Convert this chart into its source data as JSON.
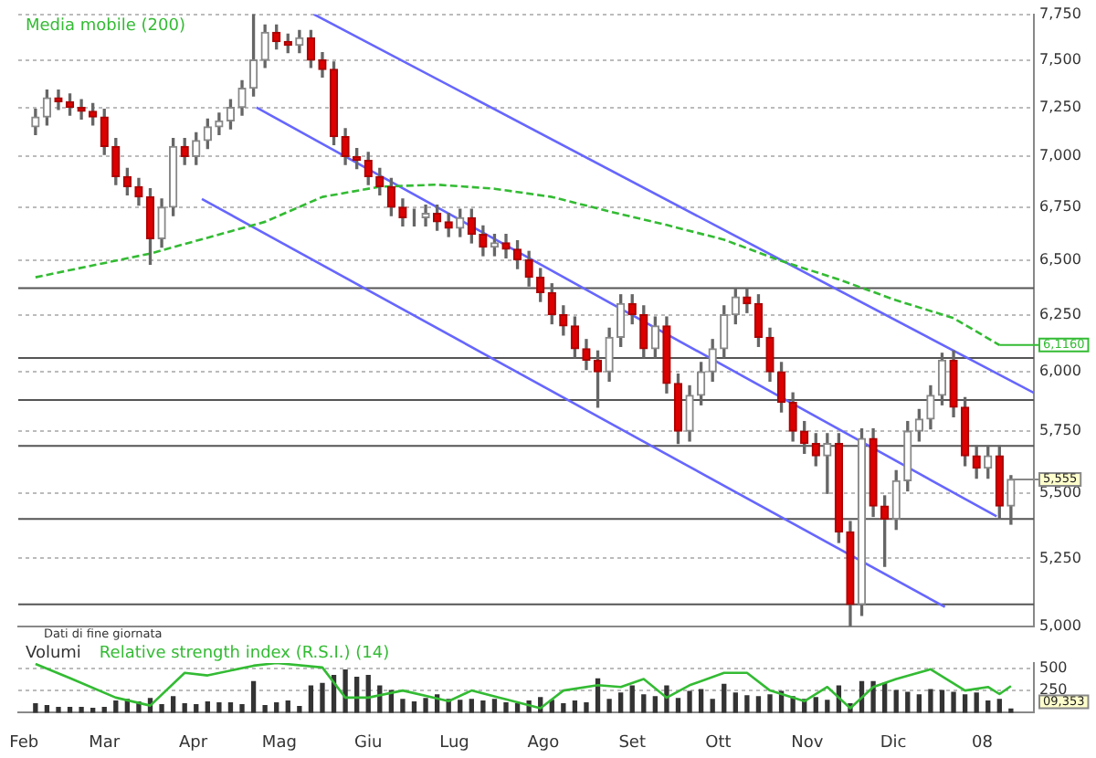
{
  "chart_data": [
    {
      "type": "candlestick",
      "x": [
        "2007-02-05",
        "2007-02-09",
        "2007-02-13",
        "2007-02-17",
        "2007-02-21",
        "2007-02-25",
        "2007-03-01",
        "2007-03-05",
        "2007-03-09",
        "2007-03-13",
        "2007-03-17",
        "2007-03-21",
        "2007-03-25",
        "2007-03-29",
        "2007-04-02",
        "2007-04-06",
        "2007-04-10",
        "2007-04-14",
        "2007-04-18",
        "2007-04-22",
        "2007-04-26",
        "2007-04-30",
        "2007-05-04",
        "2007-05-08",
        "2007-05-12",
        "2007-05-16",
        "2007-05-20",
        "2007-05-24",
        "2007-05-28",
        "2007-06-01",
        "2007-06-05",
        "2007-06-09",
        "2007-06-13",
        "2007-06-17",
        "2007-06-21",
        "2007-06-25",
        "2007-06-29",
        "2007-07-03",
        "2007-07-07",
        "2007-07-11",
        "2007-07-15",
        "2007-07-19",
        "2007-07-23",
        "2007-07-27",
        "2007-07-31",
        "2007-08-04",
        "2007-08-08",
        "2007-08-12",
        "2007-08-16",
        "2007-08-20",
        "2007-08-24",
        "2007-08-28",
        "2007-09-01",
        "2007-09-05",
        "2007-09-09",
        "2007-09-13",
        "2007-09-17",
        "2007-09-21",
        "2007-09-25",
        "2007-09-29",
        "2007-10-03",
        "2007-10-07",
        "2007-10-11",
        "2007-10-15",
        "2007-10-19",
        "2007-10-23",
        "2007-10-27",
        "2007-10-31",
        "2007-11-04",
        "2007-11-08",
        "2007-11-12",
        "2007-11-16",
        "2007-11-20",
        "2007-11-24",
        "2007-11-28",
        "2007-12-02",
        "2007-12-06",
        "2007-12-10",
        "2007-12-14",
        "2007-12-18",
        "2007-12-22",
        "2007-12-26",
        "2007-12-30",
        "2008-01-03",
        "2008-01-07",
        "2008-01-11"
      ],
      "ohlc": [
        [
          7150,
          7240,
          7110,
          7200
        ],
        [
          7200,
          7340,
          7160,
          7300
        ],
        [
          7300,
          7340,
          7240,
          7280
        ],
        [
          7280,
          7320,
          7210,
          7250
        ],
        [
          7250,
          7290,
          7190,
          7230
        ],
        [
          7230,
          7270,
          7160,
          7200
        ],
        [
          7200,
          7240,
          7010,
          7050
        ],
        [
          7050,
          7090,
          6860,
          6900
        ],
        [
          6900,
          6940,
          6810,
          6850
        ],
        [
          6850,
          6890,
          6760,
          6800
        ],
        [
          6800,
          6840,
          6480,
          6600
        ],
        [
          6600,
          6790,
          6560,
          6750
        ],
        [
          6750,
          7090,
          6710,
          7050
        ],
        [
          7050,
          7090,
          6960,
          7000
        ],
        [
          7000,
          7120,
          6960,
          7080
        ],
        [
          7080,
          7190,
          7040,
          7150
        ],
        [
          7150,
          7220,
          7110,
          7180
        ],
        [
          7180,
          7290,
          7140,
          7250
        ],
        [
          7250,
          7390,
          7210,
          7350
        ],
        [
          7350,
          7750,
          7310,
          7500
        ],
        [
          7500,
          7690,
          7460,
          7650
        ],
        [
          7650,
          7690,
          7560,
          7600
        ],
        [
          7600,
          7640,
          7540,
          7580
        ],
        [
          7580,
          7660,
          7540,
          7620
        ],
        [
          7620,
          7660,
          7460,
          7500
        ],
        [
          7500,
          7540,
          7410,
          7450
        ],
        [
          7450,
          7490,
          7060,
          7100
        ],
        [
          7100,
          7140,
          6960,
          7000
        ],
        [
          7000,
          7040,
          6940,
          6980
        ],
        [
          6980,
          7020,
          6860,
          6900
        ],
        [
          6900,
          6940,
          6810,
          6850
        ],
        [
          6850,
          6890,
          6710,
          6750
        ],
        [
          6750,
          6790,
          6660,
          6700
        ],
        [
          6700,
          6740,
          6660,
          6700
        ],
        [
          6700,
          6760,
          6660,
          6720
        ],
        [
          6720,
          6760,
          6640,
          6680
        ],
        [
          6680,
          6720,
          6610,
          6650
        ],
        [
          6650,
          6740,
          6610,
          6700
        ],
        [
          6700,
          6740,
          6580,
          6620
        ],
        [
          6620,
          6660,
          6520,
          6560
        ],
        [
          6560,
          6620,
          6520,
          6580
        ],
        [
          6580,
          6620,
          6510,
          6550
        ],
        [
          6550,
          6590,
          6460,
          6500
        ],
        [
          6500,
          6540,
          6380,
          6420
        ],
        [
          6420,
          6460,
          6310,
          6350
        ],
        [
          6350,
          6390,
          6210,
          6250
        ],
        [
          6250,
          6290,
          6160,
          6200
        ],
        [
          6200,
          6240,
          6060,
          6100
        ],
        [
          6100,
          6140,
          6010,
          6050
        ],
        [
          6050,
          6090,
          5850,
          6000
        ],
        [
          6000,
          6190,
          5960,
          6150
        ],
        [
          6150,
          6340,
          6110,
          6300
        ],
        [
          6300,
          6340,
          6210,
          6250
        ],
        [
          6250,
          6290,
          6060,
          6100
        ],
        [
          6100,
          6240,
          6060,
          6200
        ],
        [
          6200,
          6240,
          5910,
          5950
        ],
        [
          5950,
          5990,
          5700,
          5750
        ],
        [
          5750,
          5940,
          5710,
          5900
        ],
        [
          5900,
          6040,
          5860,
          6000
        ],
        [
          6000,
          6140,
          5960,
          6100
        ],
        [
          6100,
          6290,
          6060,
          6250
        ],
        [
          6250,
          6370,
          6210,
          6330
        ],
        [
          6330,
          6370,
          6260,
          6300
        ],
        [
          6300,
          6340,
          6110,
          6150
        ],
        [
          6150,
          6190,
          5960,
          6000
        ],
        [
          6000,
          6040,
          5830,
          5870
        ],
        [
          5870,
          5910,
          5710,
          5750
        ],
        [
          5750,
          5790,
          5660,
          5700
        ],
        [
          5700,
          5740,
          5610,
          5650
        ],
        [
          5650,
          5740,
          5500,
          5700
        ],
        [
          5700,
          5740,
          5310,
          5350
        ],
        [
          5350,
          5390,
          5000,
          5080
        ],
        [
          5080,
          5760,
          5040,
          5720
        ],
        [
          5720,
          5760,
          5410,
          5450
        ],
        [
          5450,
          5490,
          5220,
          5400
        ],
        [
          5400,
          5590,
          5360,
          5550
        ],
        [
          5550,
          5790,
          5510,
          5750
        ],
        [
          5750,
          5840,
          5710,
          5800
        ],
        [
          5800,
          5940,
          5760,
          5900
        ],
        [
          5900,
          6080,
          5860,
          6050
        ],
        [
          6050,
          6090,
          5810,
          5850
        ],
        [
          5850,
          5890,
          5610,
          5650
        ],
        [
          5650,
          5690,
          5560,
          5600
        ],
        [
          5600,
          5690,
          5560,
          5650
        ],
        [
          5650,
          5690,
          5400,
          5450
        ],
        [
          5450,
          5570,
          5380,
          5555
        ]
      ],
      "series": [
        {
          "name": "Media mobile (200)",
          "type": "line",
          "color": "#33bb33",
          "line_style": "dashed",
          "x": [
            "2007-02-05",
            "2007-03-17",
            "2007-04-26",
            "2007-05-16",
            "2007-06-05",
            "2007-06-25",
            "2007-07-15",
            "2007-08-04",
            "2007-08-24",
            "2007-09-13",
            "2007-10-03",
            "2007-10-23",
            "2007-11-12",
            "2007-12-02",
            "2007-12-22",
            "2008-01-07"
          ],
          "values": [
            6420,
            6530,
            6680,
            6800,
            6850,
            6860,
            6840,
            6800,
            6730,
            6665,
            6595,
            6495,
            6410,
            6315,
            6235,
            6116
          ],
          "value_labels": [
            null,
            null,
            null,
            null,
            null,
            null,
            null,
            null,
            null,
            null,
            null,
            null,
            null,
            null,
            null,
            "6,1160"
          ]
        },
        {
          "type": "line",
          "color": "#6666ff",
          "x": [
            "2007-05-13",
            "2008-01-19"
          ],
          "values": [
            7750,
            5910
          ]
        },
        {
          "type": "line",
          "color": "#6666ff",
          "x": [
            "2007-04-23",
            "2008-01-06"
          ],
          "values": [
            7250,
            5410
          ]
        },
        {
          "type": "line",
          "color": "#6666ff",
          "x": [
            "2007-04-04",
            "2007-12-19"
          ],
          "values": [
            6790,
            5070
          ]
        }
      ],
      "ref_lines": [
        {
          "axis": "y",
          "value": 6370,
          "color": "#555555"
        },
        {
          "axis": "y",
          "value": 6060,
          "color": "#555555"
        },
        {
          "axis": "y",
          "value": 5880,
          "color": "#555555"
        },
        {
          "axis": "y",
          "value": 5690,
          "color": "#555555"
        },
        {
          "axis": "y",
          "value": 5400,
          "color": "#555555"
        },
        {
          "axis": "y",
          "value": 5080,
          "color": "#555555"
        }
      ],
      "annotations": [
        {
          "text": "5,555",
          "x": "2008-01-11",
          "y": 5555
        },
        "Dati di fine giornata"
      ],
      "xlim": [
        "2007-01-30",
        "2008-01-19"
      ],
      "ylim": [
        5000,
        7750
      ],
      "yticks": [
        {
          "value": 5000,
          "label": "5,000"
        },
        {
          "value": 5250,
          "label": "5,250"
        },
        {
          "value": 5500,
          "label": "5,500"
        },
        {
          "value": 5750,
          "label": "5,750"
        },
        {
          "value": 6000,
          "label": "6,000"
        },
        {
          "value": 6250,
          "label": "6,250"
        },
        {
          "value": 6500,
          "label": "6,500"
        },
        {
          "value": 6750,
          "label": "6,750"
        },
        {
          "value": 7000,
          "label": "7,000"
        },
        {
          "value": 7250,
          "label": "7,250"
        },
        {
          "value": 7500,
          "label": "7,500"
        },
        {
          "value": 7750,
          "label": "7,750"
        }
      ],
      "log": "y",
      "grid": "y",
      "legend": "top left",
      "tick_labels": "y"
    },
    {
      "type": "bar",
      "x": [
        "2007-02-05",
        "2007-02-09",
        "2007-02-13",
        "2007-02-17",
        "2007-02-21",
        "2007-02-25",
        "2007-03-01",
        "2007-03-05",
        "2007-03-09",
        "2007-03-13",
        "2007-03-17",
        "2007-03-21",
        "2007-03-25",
        "2007-03-29",
        "2007-04-02",
        "2007-04-06",
        "2007-04-10",
        "2007-04-14",
        "2007-04-18",
        "2007-04-22",
        "2007-04-26",
        "2007-04-30",
        "2007-05-04",
        "2007-05-08",
        "2007-05-12",
        "2007-05-16",
        "2007-05-20",
        "2007-05-24",
        "2007-05-28",
        "2007-06-01",
        "2007-06-05",
        "2007-06-09",
        "2007-06-13",
        "2007-06-17",
        "2007-06-21",
        "2007-06-25",
        "2007-06-29",
        "2007-07-03",
        "2007-07-07",
        "2007-07-11",
        "2007-07-15",
        "2007-07-19",
        "2007-07-23",
        "2007-07-27",
        "2007-07-31",
        "2007-08-04",
        "2007-08-08",
        "2007-08-12",
        "2007-08-16",
        "2007-08-20",
        "2007-08-24",
        "2007-08-28",
        "2007-09-01",
        "2007-09-05",
        "2007-09-09",
        "2007-09-13",
        "2007-09-17",
        "2007-09-21",
        "2007-09-25",
        "2007-09-29",
        "2007-10-03",
        "2007-10-07",
        "2007-10-11",
        "2007-10-15",
        "2007-10-19",
        "2007-10-23",
        "2007-10-27",
        "2007-10-31",
        "2007-11-04",
        "2007-11-08",
        "2007-11-12",
        "2007-11-16",
        "2007-11-20",
        "2007-11-24",
        "2007-11-28",
        "2007-12-02",
        "2007-12-06",
        "2007-12-10",
        "2007-12-14",
        "2007-12-18",
        "2007-12-22",
        "2007-12-26",
        "2007-12-30",
        "2008-01-03",
        "2008-01-07",
        "2008-01-11"
      ],
      "series": [
        {
          "name": "Volumi",
          "color": "#333333",
          "values": [
            100,
            80,
            60,
            60,
            60,
            50,
            60,
            130,
            150,
            120,
            160,
            90,
            180,
            100,
            90,
            120,
            110,
            110,
            90,
            350,
            80,
            110,
            130,
            70,
            300,
            330,
            420,
            480,
            400,
            420,
            300,
            250,
            150,
            120,
            160,
            200,
            150,
            140,
            150,
            130,
            150,
            110,
            100,
            130,
            170,
            140,
            100,
            130,
            110,
            380,
            150,
            220,
            300,
            200,
            180,
            300,
            160,
            240,
            260,
            150,
            320,
            220,
            190,
            180,
            200,
            240,
            180,
            150,
            170,
            140,
            300,
            100,
            350,
            350,
            330,
            250,
            230,
            200,
            260,
            250,
            230,
            200,
            220,
            130,
            150,
            40
          ]
        },
        {
          "name": "Relative strength index (R.S.I.) (14)",
          "type": "line",
          "color": "#33bb33",
          "x": [
            "2007-02-05",
            "2007-02-17",
            "2007-03-05",
            "2007-03-17",
            "2007-03-29",
            "2007-04-06",
            "2007-04-22",
            "2007-04-30",
            "2007-05-16",
            "2007-05-24",
            "2007-06-01",
            "2007-06-13",
            "2007-06-29",
            "2007-07-07",
            "2007-07-19",
            "2007-07-31",
            "2007-08-08",
            "2007-08-20",
            "2007-08-28",
            "2007-09-05",
            "2007-09-13",
            "2007-09-21",
            "2007-10-03",
            "2007-10-11",
            "2007-10-19",
            "2007-10-31",
            "2007-11-08",
            "2007-11-16",
            "2007-11-24",
            "2007-12-02",
            "2007-12-14",
            "2007-12-26",
            "2008-01-03",
            "2008-01-07",
            "2008-01-11"
          ],
          "values": [
            550,
            390,
            170,
            80,
            450,
            420,
            530,
            560,
            510,
            170,
            170,
            250,
            130,
            250,
            150,
            50,
            250,
            310,
            290,
            380,
            170,
            310,
            450,
            450,
            250,
            130,
            290,
            50,
            290,
            380,
            490,
            250,
            290,
            210,
            300
          ]
        }
      ],
      "annotations": [
        {
          "text": "09,353"
        }
      ],
      "xlim": [
        "2007-01-30",
        "2008-01-19"
      ],
      "xticks": [
        {
          "value": "2007-02-01",
          "label": "Feb"
        },
        {
          "value": "2007-03-01",
          "label": "Mar"
        },
        {
          "value": "2007-04-01",
          "label": "Apr"
        },
        {
          "value": "2007-05-01",
          "label": "Mag"
        },
        {
          "value": "2007-06-01",
          "label": "Giu"
        },
        {
          "value": "2007-07-01",
          "label": "Lug"
        },
        {
          "value": "2007-08-01",
          "label": "Ago"
        },
        {
          "value": "2007-09-01",
          "label": "Set"
        },
        {
          "value": "2007-10-01",
          "label": "Ott"
        },
        {
          "value": "2007-11-01",
          "label": "Nov"
        },
        {
          "value": "2007-12-01",
          "label": "Dic"
        },
        {
          "value": "2008-01-01",
          "label": "08"
        }
      ],
      "ylim": [
        0,
        560
      ],
      "yticks": [
        250,
        500
      ],
      "grid": "y",
      "legend": "top left"
    }
  ]
}
